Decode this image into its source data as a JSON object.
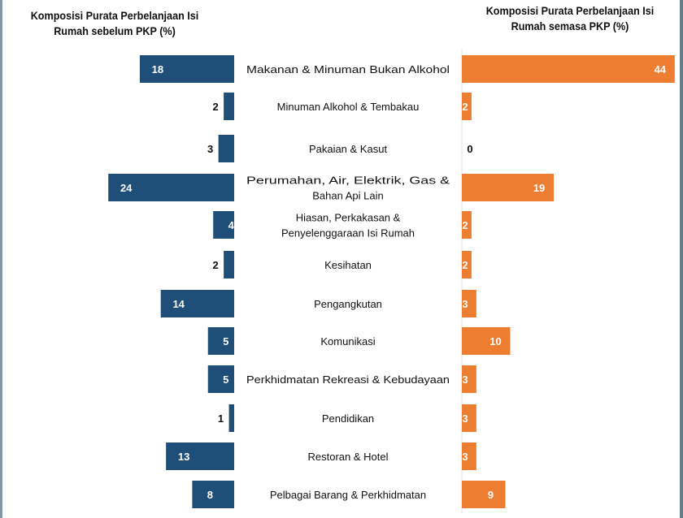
{
  "chart_data": {
    "type": "bar",
    "layout": "butterfly",
    "categories": [
      [
        "Makanan & Minuman Bukan Alkohol"
      ],
      [
        "Minuman Alkohol & Tembakau"
      ],
      [
        "Pakaian & Kasut"
      ],
      [
        "Perumahan, Air, Elektrik, Gas &",
        "Bahan Api Lain"
      ],
      [
        "Hiasan, Perkakasan &",
        "Penyelenggaraan Isi Rumah"
      ],
      [
        "Kesihatan"
      ],
      [
        "Pengangkutan"
      ],
      [
        "Komunikasi"
      ],
      [
        "Perkhidmatan Rekreasi & Kebudayaan"
      ],
      [
        "Pendidikan"
      ],
      [
        "Restoran & Hotel"
      ],
      [
        "Pelbagai Barang & Perkhidmatan"
      ]
    ],
    "series": [
      {
        "name": "Komposisi Purata Perbelanjaan Isi Rumah sebelum PKP (%)",
        "color": "#1f4e79",
        "values": [
          18,
          2,
          3,
          24,
          4,
          2,
          14,
          5,
          5,
          1,
          13,
          8
        ]
      },
      {
        "name": "Komposisi Purata Perbelanjaan Isi Rumah semasa PKP (%)",
        "color": "#ed7d31",
        "values": [
          44,
          2,
          0,
          19,
          2,
          2,
          3,
          10,
          3,
          3,
          3,
          9
        ]
      }
    ],
    "titles": {
      "left": [
        "Komposisi Purata Perbelanjaan Isi",
        "Rumah sebelum PKP (%)"
      ],
      "right": [
        "Komposisi Purata Perbelanjaan Isi",
        "Rumah semasa PKP (%)"
      ]
    },
    "unit": "%"
  }
}
